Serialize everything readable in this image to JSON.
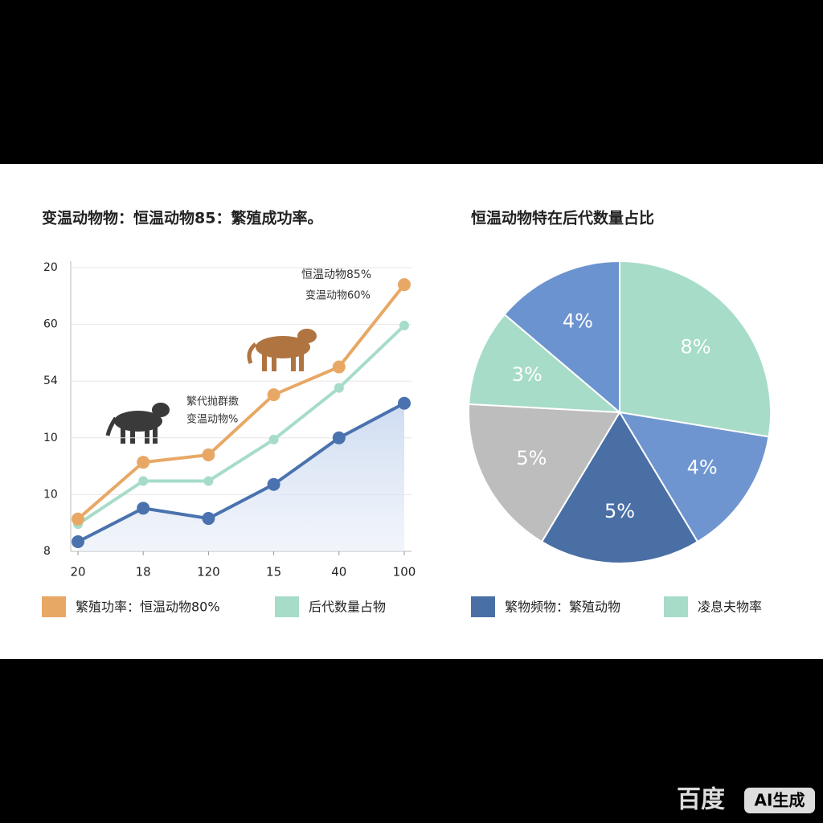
{
  "chart_data": [
    {
      "type": "line",
      "title": "变温动物物：恒温动物85：繁殖成功率。",
      "categories": [
        "20",
        "18",
        "120",
        "15",
        "40",
        "100"
      ],
      "ycategories": [
        "8",
        "10",
        "10",
        "54",
        "60",
        "20"
      ],
      "ylim": [
        0,
        5
      ],
      "grid": true,
      "series": [
        {
          "name": "繁殖功率：恒温动物80%",
          "color": "#e8a865",
          "values": [
            0.57,
            1.57,
            1.7,
            2.76,
            3.25,
            4.7
          ]
        },
        {
          "name": "后代数量占物",
          "color": "#a6dcc8",
          "values": [
            0.48,
            1.24,
            1.24,
            1.97,
            2.88,
            3.98
          ]
        },
        {
          "color": "#4a72ae",
          "area": true,
          "values": [
            0.17,
            0.76,
            0.58,
            1.18,
            2.0,
            2.61
          ]
        }
      ],
      "annotations": [
        "恒温动物85%",
        "变温动物60%",
        "繁代抛群擞",
        "变温动物%"
      ]
    },
    {
      "type": "pie",
      "title": "恒温动物特在后代数量占比",
      "values": [
        8,
        4,
        5,
        5,
        3,
        4
      ],
      "value_labels": [
        "8%",
        "4%",
        "5%",
        "5%",
        "3%",
        "4%"
      ],
      "colors": [
        "#a6dcc8",
        "#6f95d0",
        "#4a6fa5",
        "#bdbdbd",
        "#a6dcc8",
        "#6b93cf"
      ],
      "legend": [
        {
          "label": "繁物频物：繁殖动物",
          "color": "#4a6fa5"
        },
        {
          "label": "凌息夫物率",
          "color": "#a6dcc8"
        }
      ]
    }
  ],
  "watermark": {
    "brand": "百度",
    "badge": "AI生成"
  }
}
